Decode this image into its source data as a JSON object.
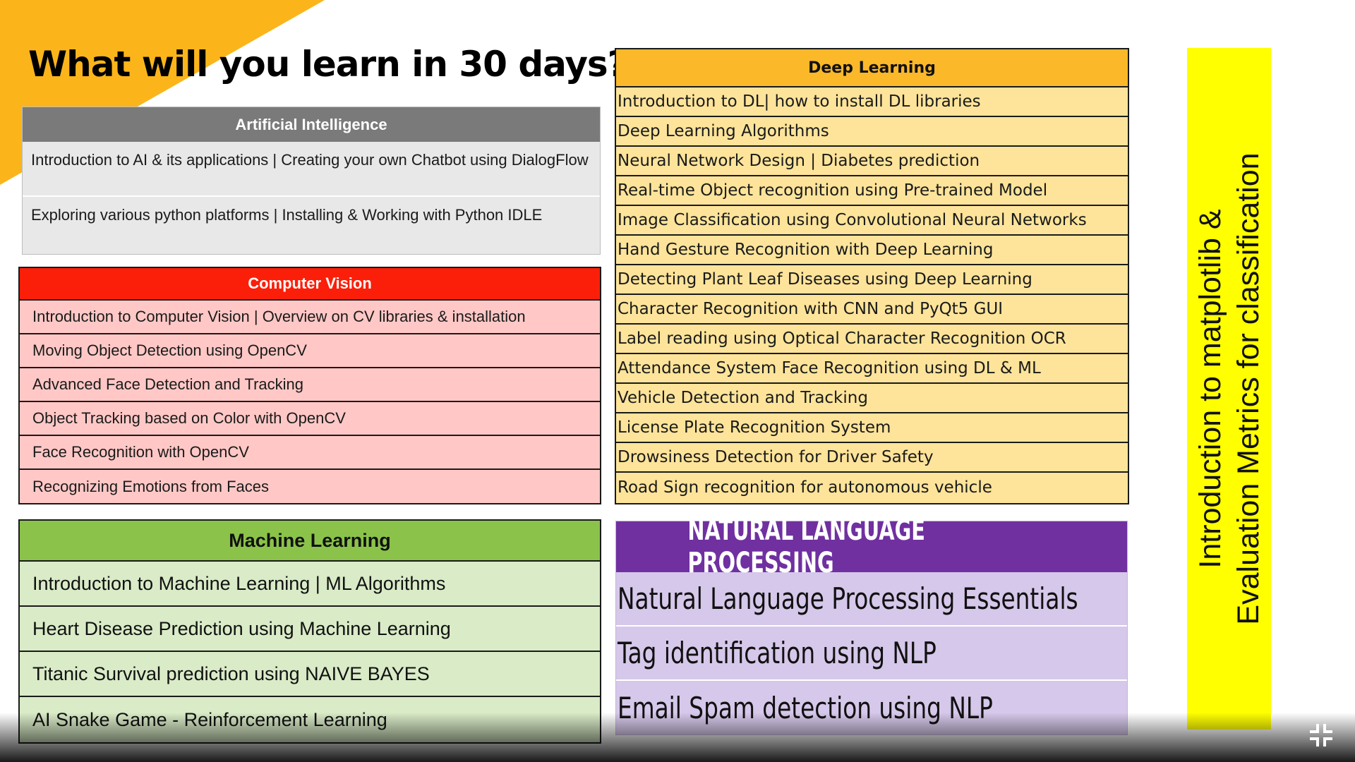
{
  "title": "What will you learn in 30 days?",
  "colors": {
    "corner_accent": "#fbb51a",
    "ai_header": "#7a7a7a",
    "cv_header": "#fb1f0a",
    "ml_header": "#8bc34a",
    "dl_header": "#fbb829",
    "nlp_header": "#7030a0",
    "banner": "#ffff00"
  },
  "ai": {
    "header": "Artificial Intelligence",
    "items": [
      "Introduction to AI & its applications | Creating your own Chatbot using DialogFlow",
      "Exploring various python platforms | Installing & Working with Python IDLE"
    ]
  },
  "cv": {
    "header": "Computer Vision",
    "items": [
      "Introduction to Computer Vision | Overview on CV libraries & installation",
      "Moving Object Detection using OpenCV",
      "Advanced Face Detection and Tracking",
      "Object Tracking based on Color with OpenCV",
      "Face Recognition with OpenCV",
      "Recognizing Emotions from Faces"
    ]
  },
  "ml": {
    "header": "Machine Learning",
    "items": [
      "Introduction to Machine Learning | ML Algorithms",
      "Heart Disease Prediction using Machine Learning",
      "Titanic Survival prediction using NAIVE BAYES",
      "AI Snake Game - Reinforcement Learning"
    ]
  },
  "dl": {
    "header": "Deep Learning",
    "items": [
      "Introduction to DL| how to install DL libraries",
      "Deep Learning Algorithms",
      "Neural Network Design | Diabetes prediction",
      "Real-time Object recognition using Pre-trained Model",
      "Image Classification using Convolutional Neural Networks",
      "Hand Gesture Recognition with Deep Learning",
      "Detecting Plant Leaf Diseases using Deep Learning",
      "Character Recognition with CNN and PyQt5 GUI",
      "Label reading using Optical Character Recognition OCR",
      "Attendance System Face Recognition using DL & ML",
      "Vehicle Detection and Tracking",
      "License Plate Recognition System",
      "Drowsiness Detection for Driver Safety",
      "Road Sign recognition for autonomous vehicle"
    ]
  },
  "nlp": {
    "header": "NATURAL LANGUAGE PROCESSING",
    "items": [
      "Natural Language Processing Essentials",
      "Tag identification using NLP",
      "Email Spam detection using NLP"
    ]
  },
  "banner": {
    "line1": "Introduction to matplotlib &",
    "line2": "Evaluation Metrics for classification"
  },
  "controls": {
    "exit_fullscreen_icon": "exit-fullscreen-icon"
  }
}
